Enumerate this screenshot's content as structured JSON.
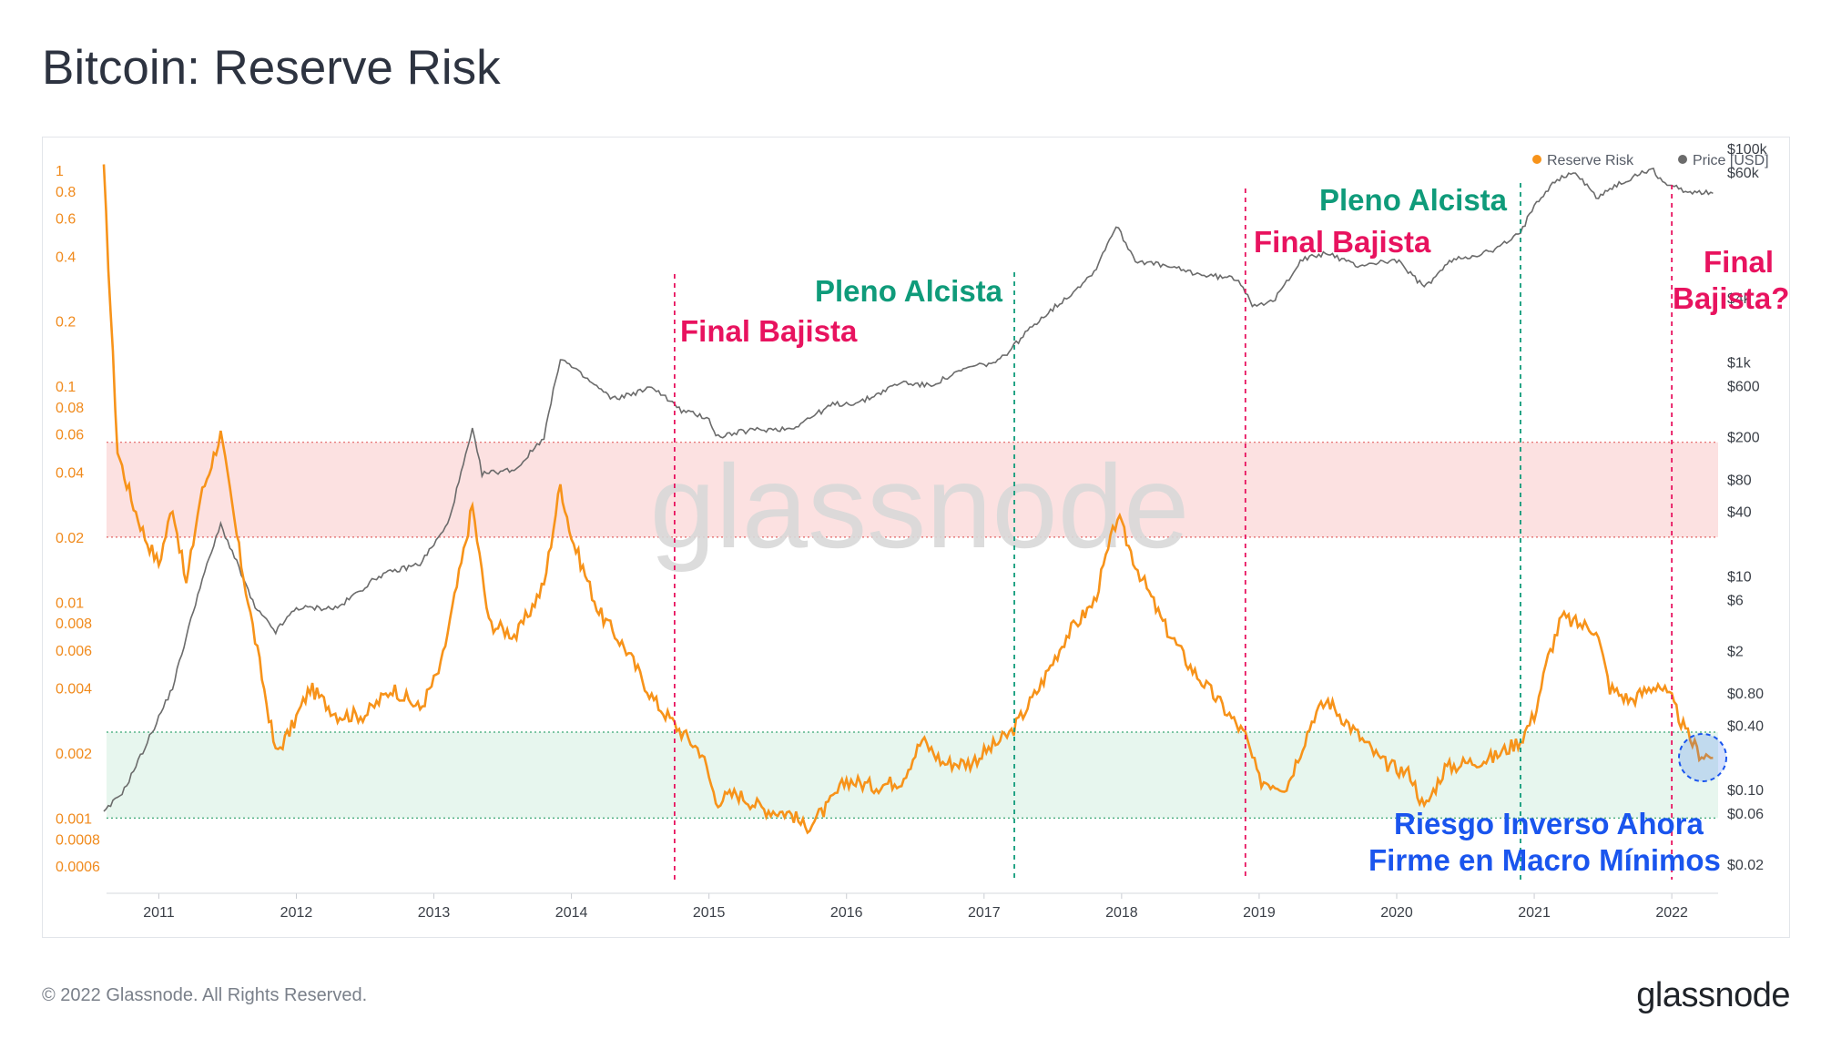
{
  "title": "Bitcoin: Reserve Risk",
  "footer": {
    "copyright": "© 2022 Glassnode. All Rights Reserved.",
    "logo": "glassnode"
  },
  "watermark": "glassnode",
  "colors": {
    "reserve_risk": "#f7931a",
    "price": "#6b6b6b",
    "bear": "#e8135f",
    "bull": "#0f9b7a",
    "note": "#1a55ee",
    "red_band": "#fbdcdc",
    "green_band": "#e4f5ec"
  },
  "chart_data": {
    "type": "line",
    "legend": [
      "Reserve Risk",
      "Price [USD]"
    ],
    "x_ticks": [
      "2011",
      "2012",
      "2013",
      "2014",
      "2015",
      "2016",
      "2017",
      "2018",
      "2019",
      "2020",
      "2021",
      "2022"
    ],
    "y_left_ticks": [
      "1",
      "0.8",
      "0.6",
      "0.4",
      "0.2",
      "0.1",
      "0.08",
      "0.06",
      "0.04",
      "0.02",
      "0.01",
      "0.008",
      "0.006",
      "0.004",
      "0.002",
      "0.001",
      "0.0008",
      "0.0006"
    ],
    "y_right_ticks": [
      "$100k",
      "$60k",
      "$4k",
      "$1k",
      "$600",
      "$200",
      "$80",
      "$40",
      "$10",
      "$6",
      "$2",
      "$0.80",
      "$0.40",
      "$0.10",
      "$0.06",
      "$0.02"
    ],
    "y_left_scale": "log",
    "y_right_scale": "log",
    "bands": {
      "red": [
        0.02,
        0.055
      ],
      "green": [
        0.001,
        0.0025
      ]
    },
    "series": [
      {
        "name": "Reserve Risk",
        "x": [
          2010.6,
          2010.7,
          2010.8,
          2010.9,
          2011.0,
          2011.1,
          2011.2,
          2011.3,
          2011.45,
          2011.6,
          2011.75,
          2011.85,
          2011.95,
          2012.1,
          2012.3,
          2012.5,
          2012.7,
          2012.9,
          2013.05,
          2013.2,
          2013.28,
          2013.4,
          2013.6,
          2013.8,
          2013.92,
          2014.0,
          2014.2,
          2014.4,
          2014.6,
          2014.8,
          2014.95,
          2015.05,
          2015.2,
          2015.4,
          2015.6,
          2015.7,
          2015.85,
          2016.0,
          2016.2,
          2016.4,
          2016.55,
          2016.7,
          2016.9,
          2017.0,
          2017.2,
          2017.4,
          2017.6,
          2017.8,
          2017.97,
          2018.1,
          2018.3,
          2018.5,
          2018.7,
          2018.9,
          2019.0,
          2019.2,
          2019.4,
          2019.5,
          2019.7,
          2019.9,
          2020.1,
          2020.2,
          2020.35,
          2020.5,
          2020.7,
          2020.9,
          2021.0,
          2021.1,
          2021.2,
          2021.3,
          2021.45,
          2021.55,
          2021.7,
          2021.9,
          2022.0,
          2022.1,
          2022.2,
          2022.3
        ],
        "y": [
          1.0,
          0.05,
          0.03,
          0.02,
          0.015,
          0.028,
          0.012,
          0.03,
          0.06,
          0.015,
          0.0045,
          0.002,
          0.0025,
          0.004,
          0.003,
          0.003,
          0.004,
          0.0032,
          0.005,
          0.015,
          0.028,
          0.008,
          0.007,
          0.012,
          0.035,
          0.02,
          0.009,
          0.006,
          0.0035,
          0.0025,
          0.002,
          0.0012,
          0.0013,
          0.0011,
          0.00105,
          0.0009,
          0.0011,
          0.0015,
          0.0014,
          0.0015,
          0.0023,
          0.0018,
          0.0018,
          0.002,
          0.0025,
          0.004,
          0.007,
          0.01,
          0.025,
          0.015,
          0.008,
          0.005,
          0.0035,
          0.0024,
          0.0015,
          0.0014,
          0.003,
          0.0035,
          0.0025,
          0.0018,
          0.0016,
          0.0011,
          0.0017,
          0.0018,
          0.0019,
          0.0023,
          0.003,
          0.0055,
          0.0085,
          0.008,
          0.0075,
          0.004,
          0.0035,
          0.0042,
          0.0035,
          0.0025,
          0.002,
          0.0019
        ]
      },
      {
        "name": "Price [USD]",
        "x": [
          2010.6,
          2010.75,
          2010.9,
          2011.1,
          2011.3,
          2011.45,
          2011.55,
          2011.7,
          2011.85,
          2012.0,
          2012.3,
          2012.6,
          2012.9,
          2013.1,
          2013.28,
          2013.35,
          2013.6,
          2013.8,
          2013.92,
          2014.05,
          2014.3,
          2014.6,
          2014.8,
          2015.0,
          2015.05,
          2015.3,
          2015.6,
          2015.9,
          2016.1,
          2016.4,
          2016.6,
          2016.9,
          2017.1,
          2017.4,
          2017.6,
          2017.8,
          2017.96,
          2018.1,
          2018.3,
          2018.6,
          2018.85,
          2018.95,
          2019.1,
          2019.3,
          2019.5,
          2019.7,
          2020.0,
          2020.2,
          2020.4,
          2020.7,
          2020.9,
          2021.0,
          2021.15,
          2021.3,
          2021.45,
          2021.6,
          2021.85,
          2021.95,
          2022.1,
          2022.3
        ],
        "y": [
          0.06,
          0.1,
          0.25,
          0.9,
          8,
          30,
          15,
          5,
          3,
          5,
          5,
          10,
          13,
          30,
          230,
          90,
          100,
          200,
          1100,
          800,
          450,
          580,
          350,
          300,
          200,
          230,
          240,
          400,
          420,
          650,
          600,
          900,
          1000,
          2500,
          4000,
          7000,
          19000,
          9000,
          8000,
          6500,
          6000,
          3500,
          3600,
          9000,
          10500,
          8000,
          9000,
          5000,
          9000,
          11000,
          16000,
          30000,
          50000,
          60000,
          35000,
          45000,
          65000,
          47000,
          40000,
          38000
        ]
      }
    ],
    "annotations": {
      "bear_1": "Final Bajista",
      "bull_1": "Pleno Alcista",
      "bear_2": "Final Bajista",
      "bull_2": "Pleno Alcista",
      "bear_3_line1": "Final",
      "bear_3_line2": "Bajista?",
      "note_line1": "Riesgo Inverso Ahora",
      "note_line2": "Firme en Macro Mínimos"
    },
    "vertical_markers": [
      {
        "x": 2014.75,
        "kind": "bear"
      },
      {
        "x": 2017.22,
        "kind": "bull"
      },
      {
        "x": 2018.9,
        "kind": "bear"
      },
      {
        "x": 2020.9,
        "kind": "bull"
      },
      {
        "x": 2022.0,
        "kind": "bear"
      }
    ]
  }
}
